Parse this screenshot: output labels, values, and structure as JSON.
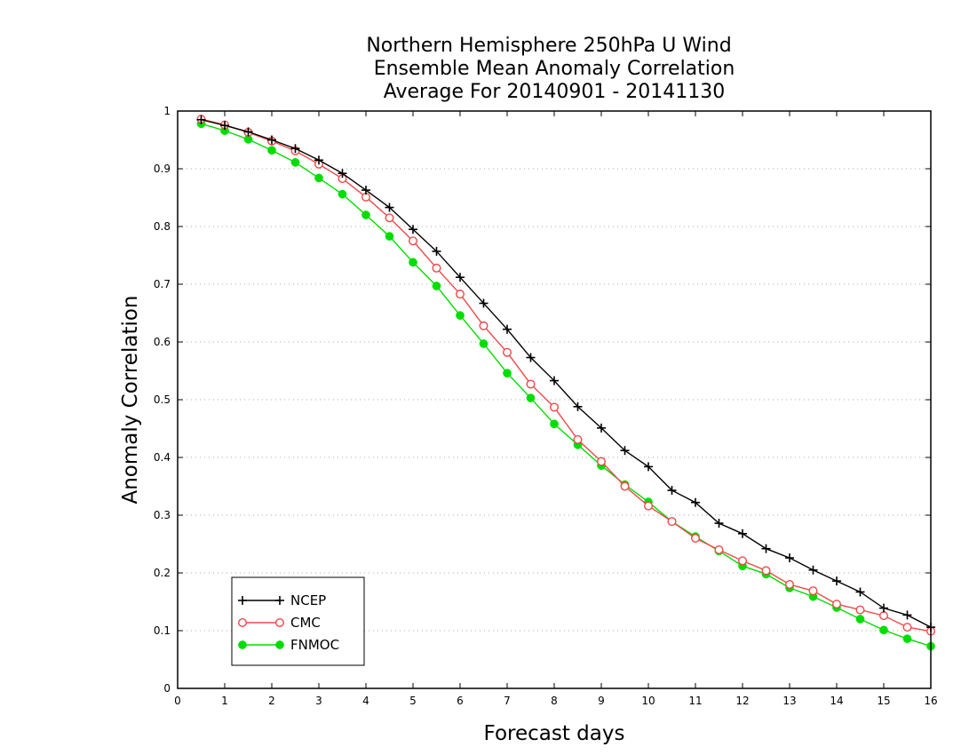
{
  "chart_data": {
    "type": "line",
    "title": [
      "Northern Hemisphere 250hPa U Wind",
      "Ensemble Mean Anomaly Correlation",
      "Average For 20140901 - 20141130"
    ],
    "xlabel": "Forecast days",
    "ylabel": "Anomaly Correlation",
    "xlim": [
      0,
      16
    ],
    "ylim": [
      0,
      1
    ],
    "x_ticks": [
      "0",
      "1",
      "2",
      "3",
      "4",
      "5",
      "6",
      "7",
      "8",
      "9",
      "10",
      "11",
      "12",
      "13",
      "14",
      "15",
      "16"
    ],
    "y_ticks": [
      "0",
      "0.1",
      "0.2",
      "0.3",
      "0.4",
      "0.5",
      "0.6",
      "0.7",
      "0.8",
      "0.9",
      "1"
    ],
    "grid": "horizontal dotted",
    "legend_position": "bottom-left",
    "x": [
      0.5,
      1,
      1.5,
      2,
      2.5,
      3,
      3.5,
      4,
      4.5,
      5,
      5.5,
      6,
      6.5,
      7,
      7.5,
      8,
      8.5,
      9,
      9.5,
      10,
      10.5,
      11,
      11.5,
      12,
      12.5,
      13,
      13.5,
      14,
      14.5,
      15,
      15.5,
      16
    ],
    "series": [
      {
        "name": "NCEP",
        "color": "#000000",
        "marker": "plus",
        "values": [
          0.985,
          0.975,
          0.964,
          0.95,
          0.935,
          0.915,
          0.892,
          0.863,
          0.833,
          0.795,
          0.757,
          0.712,
          0.667,
          0.622,
          0.573,
          0.533,
          0.488,
          0.451,
          0.412,
          0.384,
          0.343,
          0.322,
          0.286,
          0.268,
          0.242,
          0.226,
          0.205,
          0.186,
          0.167,
          0.139,
          0.127,
          0.106
        ]
      },
      {
        "name": "CMC",
        "color": "#f04848",
        "marker": "open-circle",
        "values": [
          0.986,
          0.976,
          0.963,
          0.948,
          0.931,
          0.908,
          0.883,
          0.851,
          0.815,
          0.775,
          0.728,
          0.683,
          0.628,
          0.582,
          0.527,
          0.487,
          0.431,
          0.393,
          0.35,
          0.316,
          0.289,
          0.26,
          0.24,
          0.221,
          0.204,
          0.18,
          0.169,
          0.146,
          0.136,
          0.126,
          0.106,
          0.099
        ]
      },
      {
        "name": "FNMOC",
        "color": "#00dd00",
        "marker": "filled-circle",
        "values": [
          0.978,
          0.966,
          0.951,
          0.932,
          0.911,
          0.884,
          0.856,
          0.82,
          0.783,
          0.738,
          0.697,
          0.646,
          0.597,
          0.546,
          0.503,
          0.458,
          0.422,
          0.386,
          0.353,
          0.323,
          0.289,
          0.263,
          0.238,
          0.212,
          0.198,
          0.174,
          0.159,
          0.14,
          0.12,
          0.101,
          0.086,
          0.073
        ]
      }
    ]
  }
}
